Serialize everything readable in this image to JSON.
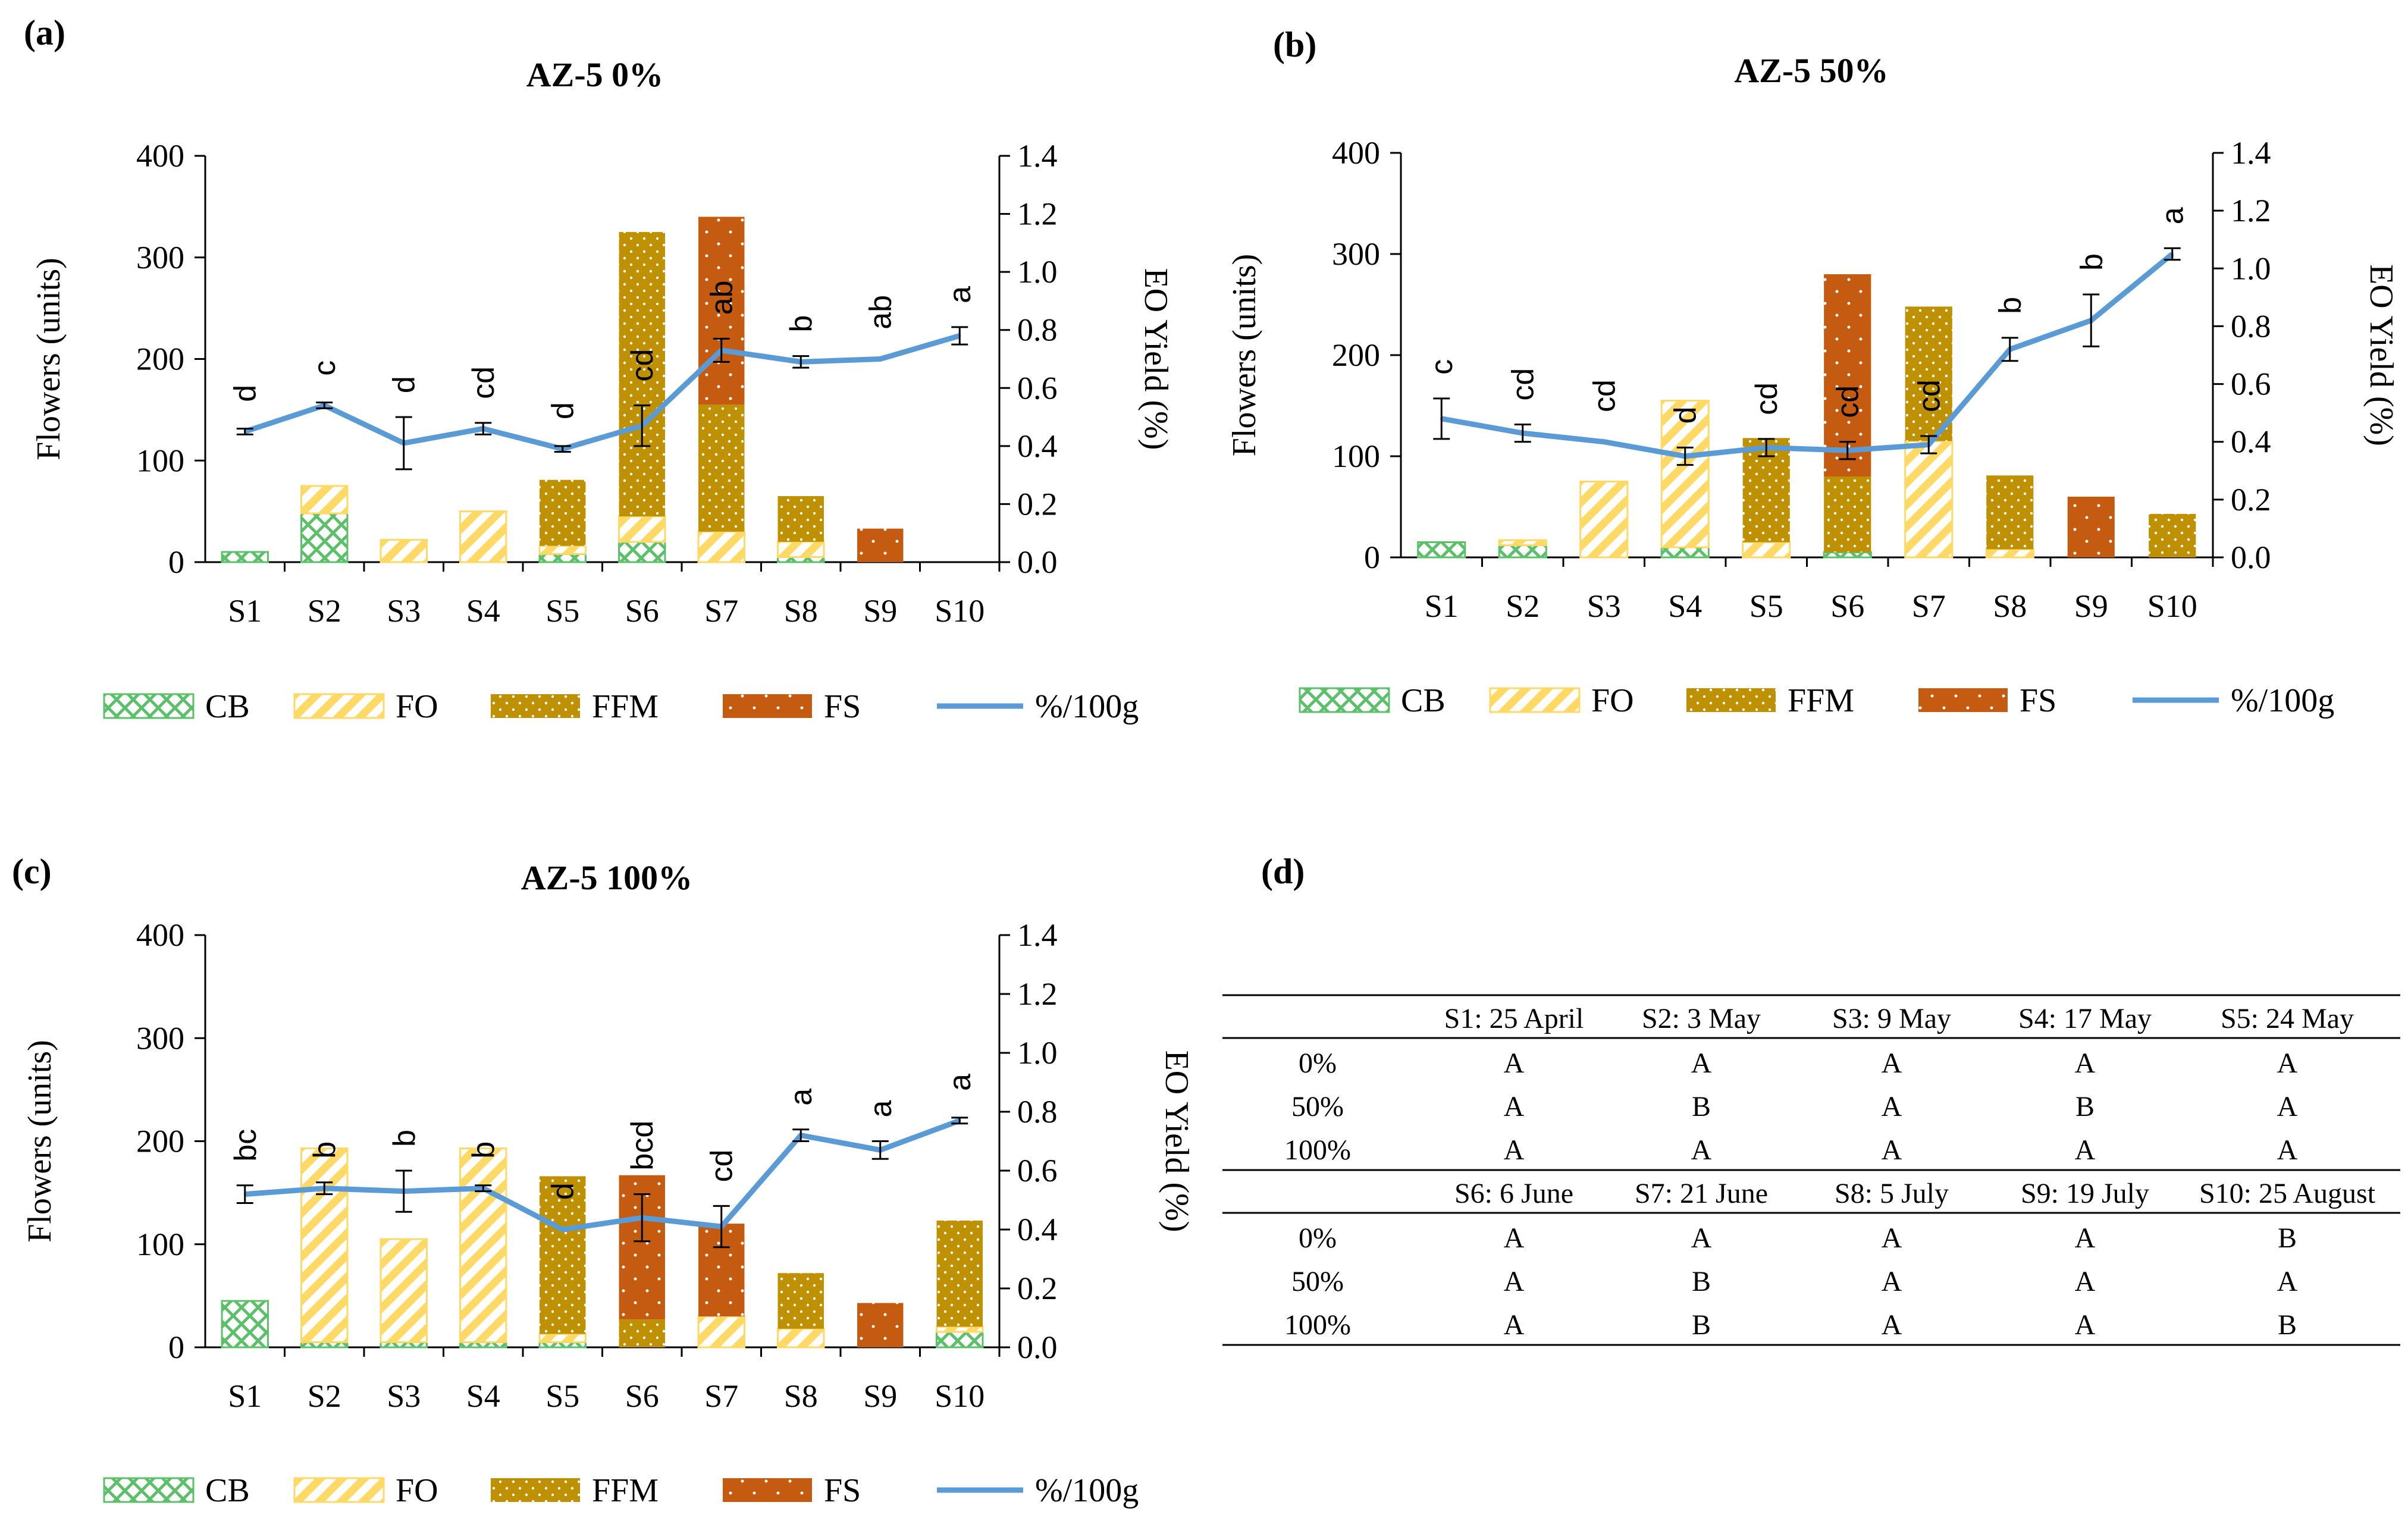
{
  "panels": [
    {
      "label": "(a)",
      "title": "AZ-5 0%"
    },
    {
      "label": "(b)",
      "title": "AZ-5 50%"
    },
    {
      "label": "(c)",
      "title": "AZ-5 100%"
    },
    {
      "label": "(d)"
    }
  ],
  "colors": {
    "CB": "#5cbf6a",
    "FO": "#ffd966",
    "FFM": "#bf9000",
    "FS": "#c55a11",
    "yield_line": "#5b9bd5"
  },
  "chart_data": [
    {
      "type": "bar",
      "title": "AZ-5 0%",
      "stacked": true,
      "categories": [
        "S1",
        "S2",
        "S3",
        "S4",
        "S5",
        "S6",
        "S7",
        "S8",
        "S9",
        "S10"
      ],
      "ylabel": "Flowers (units)",
      "ylim": [
        0,
        400
      ],
      "yticks": [
        0,
        100,
        200,
        300,
        400
      ],
      "y2label": "EO Yield (%)",
      "y2lim": [
        0,
        1.4
      ],
      "y2ticks": [
        "0.0",
        "0.2",
        "0.4",
        "0.6",
        "0.8",
        "1.0",
        "1.2",
        "1.4"
      ],
      "series": [
        {
          "name": "CB",
          "values": [
            10,
            48,
            0,
            0,
            8,
            20,
            0,
            5,
            0,
            0
          ]
        },
        {
          "name": "FO",
          "values": [
            0,
            27,
            22,
            50,
            8,
            25,
            30,
            15,
            0,
            0
          ]
        },
        {
          "name": "FFM",
          "values": [
            0,
            0,
            0,
            0,
            65,
            280,
            125,
            45,
            0,
            0
          ]
        },
        {
          "name": "FS",
          "values": [
            0,
            0,
            0,
            0,
            0,
            0,
            185,
            0,
            33,
            0
          ]
        }
      ],
      "line": {
        "name": "%/100g",
        "values": [
          0.45,
          0.54,
          0.41,
          0.46,
          0.39,
          0.47,
          0.73,
          0.69,
          0.7,
          0.78
        ],
        "errors": [
          0.01,
          0.01,
          0.09,
          0.02,
          0.01,
          0.07,
          0.04,
          0.02,
          0.0,
          0.03
        ]
      },
      "letters": [
        "d",
        "c",
        "d",
        "cd",
        "d",
        "cd",
        "ab",
        "b",
        "ab",
        "a"
      ],
      "legend": [
        "CB",
        "FO",
        "FFM",
        "FS",
        "%/100g"
      ]
    },
    {
      "type": "bar",
      "title": "AZ-5 50%",
      "stacked": true,
      "categories": [
        "S1",
        "S2",
        "S3",
        "S4",
        "S5",
        "S6",
        "S7",
        "S8",
        "S9",
        "S10"
      ],
      "ylabel": "Flowers (units)",
      "ylim": [
        0,
        400
      ],
      "yticks": [
        0,
        100,
        200,
        300,
        400
      ],
      "y2label": "EO Yield (%)",
      "y2lim": [
        0,
        1.4
      ],
      "y2ticks": [
        "0.0",
        "0.2",
        "0.4",
        "0.6",
        "0.8",
        "1.0",
        "1.2",
        "1.4"
      ],
      "series": [
        {
          "name": "CB",
          "values": [
            15,
            12,
            0,
            10,
            0,
            5,
            0,
            0,
            0,
            0
          ]
        },
        {
          "name": "FO",
          "values": [
            0,
            5,
            75,
            145,
            15,
            0,
            115,
            8,
            0,
            0
          ]
        },
        {
          "name": "FFM",
          "values": [
            0,
            0,
            0,
            0,
            103,
            75,
            133,
            73,
            0,
            43
          ]
        },
        {
          "name": "FS",
          "values": [
            0,
            0,
            0,
            0,
            0,
            200,
            0,
            0,
            60,
            0
          ]
        }
      ],
      "line": {
        "name": "%/100g",
        "values": [
          0.48,
          0.43,
          0.4,
          0.35,
          0.38,
          0.37,
          0.39,
          0.72,
          0.82,
          1.05
        ],
        "errors": [
          0.07,
          0.03,
          0.0,
          0.03,
          0.03,
          0.03,
          0.03,
          0.04,
          0.09,
          0.02
        ]
      },
      "letters": [
        "c",
        "cd",
        "cd",
        "d",
        "cd",
        "cd",
        "cd",
        "b",
        "b",
        "a"
      ],
      "legend": [
        "CB",
        "FO",
        "FFM",
        "FS",
        "%/100g"
      ]
    },
    {
      "type": "bar",
      "title": "AZ-5 100%",
      "stacked": true,
      "categories": [
        "S1",
        "S2",
        "S3",
        "S4",
        "S5",
        "S6",
        "S7",
        "S8",
        "S9",
        "S10"
      ],
      "ylabel": "Flowers (units)",
      "ylim": [
        0,
        400
      ],
      "yticks": [
        0,
        100,
        200,
        300,
        400
      ],
      "y2label": "EO Yield (%)",
      "y2lim": [
        0,
        1.4
      ],
      "y2ticks": [
        "0.0",
        "0.2",
        "0.4",
        "0.6",
        "0.8",
        "1.0",
        "1.2",
        "1.4"
      ],
      "series": [
        {
          "name": "CB",
          "values": [
            45,
            5,
            5,
            5,
            5,
            0,
            0,
            0,
            0,
            15
          ]
        },
        {
          "name": "FO",
          "values": [
            0,
            188,
            100,
            188,
            8,
            0,
            30,
            18,
            0,
            5
          ]
        },
        {
          "name": "FFM",
          "values": [
            0,
            0,
            0,
            0,
            153,
            27,
            0,
            54,
            0,
            103
          ]
        },
        {
          "name": "FS",
          "values": [
            0,
            0,
            0,
            0,
            0,
            140,
            90,
            0,
            43,
            0
          ]
        }
      ],
      "line": {
        "name": "%/100g",
        "values": [
          0.52,
          0.54,
          0.53,
          0.54,
          0.4,
          0.44,
          0.41,
          0.72,
          0.67,
          0.77
        ],
        "errors": [
          0.03,
          0.02,
          0.07,
          0.01,
          0.0,
          0.08,
          0.07,
          0.02,
          0.03,
          0.01
        ]
      },
      "letters": [
        "bc",
        "b",
        "b",
        "b",
        "d",
        "bcd",
        "cd",
        "a",
        "a",
        "a"
      ],
      "legend": [
        "CB",
        "FO",
        "FFM",
        "FS",
        "%/100g"
      ]
    },
    {
      "type": "table",
      "header1": [
        "",
        "S1: 25 April",
        "S2: 3 May",
        "S3: 9 May",
        "S4: 17 May",
        "S5: 24 May"
      ],
      "rows1": [
        [
          "0%",
          "A",
          "A",
          "A",
          "A",
          "A"
        ],
        [
          "50%",
          "A",
          "B",
          "A",
          "B",
          "A"
        ],
        [
          "100%",
          "A",
          "A",
          "A",
          "A",
          "A"
        ]
      ],
      "header2": [
        "",
        "S6: 6 June",
        "S7: 21 June",
        "S8: 5 July",
        "S9: 19 July",
        "S10: 25 August"
      ],
      "rows2": [
        [
          "0%",
          "A",
          "A",
          "A",
          "A",
          "B"
        ],
        [
          "50%",
          "A",
          "B",
          "A",
          "A",
          "A"
        ],
        [
          "100%",
          "A",
          "B",
          "A",
          "A",
          "B"
        ]
      ]
    }
  ]
}
